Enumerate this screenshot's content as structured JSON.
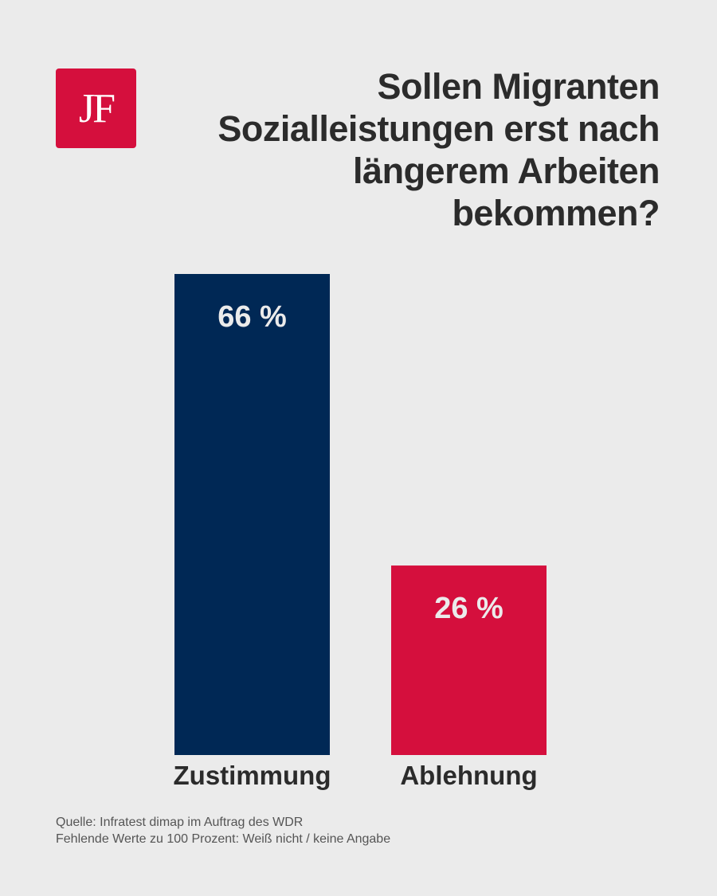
{
  "logo": {
    "text": "JF"
  },
  "chart_data": {
    "type": "bar",
    "title": "Sollen Migranten Sozialleistungen erst nach längerem Arbeiten bekommen?",
    "categories": [
      "Zustimmung",
      "Ablehnung"
    ],
    "values": [
      66,
      26
    ],
    "value_labels": [
      "66 %",
      "26 %"
    ],
    "colors": [
      "#002855",
      "#d50f3d"
    ],
    "unit": "%",
    "ylim": [
      0,
      100
    ],
    "grid": false,
    "xlabel": "",
    "ylabel": ""
  },
  "footer": {
    "source": "Quelle: Infratest dimap im Auftrag des WDR",
    "note": "Fehlende Werte zu 100 Prozent: Weiß nicht / keine Angabe"
  }
}
